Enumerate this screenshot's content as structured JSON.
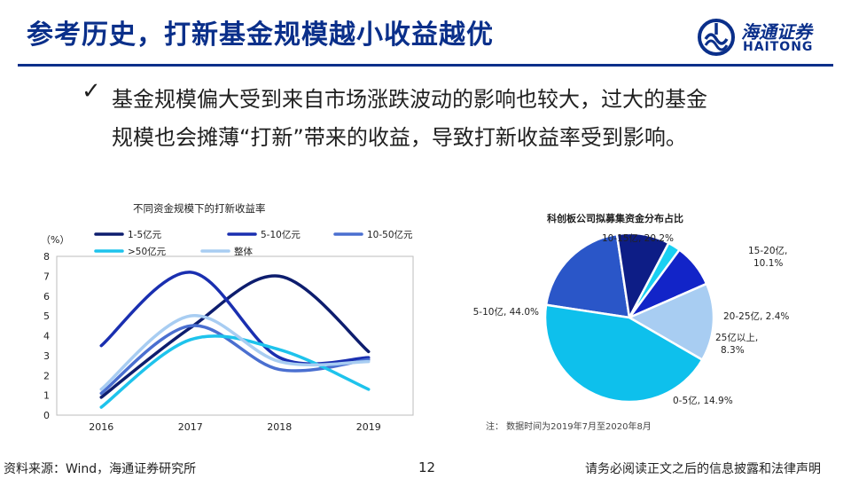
{
  "header": {
    "title": "参考历史，打新基金规模越小收益越优"
  },
  "logo": {
    "name_cn": "海通证券",
    "name_en": "HAITONG"
  },
  "bullet": {
    "icon": "check-icon",
    "line1": "基金规模偏大受到来自市场涨跌波动的影响也较大，过大的基金",
    "line2": "规模也会摊薄“打新”带来的收益，导致打新收益率受到影响。"
  },
  "colors": {
    "brand": "#0a2f8a"
  },
  "chart_data": [
    {
      "type": "line",
      "title": "不同资金规模下的打新收益率",
      "ylabel": "（%）",
      "x": [
        "2016",
        "2017",
        "2018",
        "2019"
      ],
      "ylim": [
        0,
        8
      ],
      "yticks": [
        "0",
        "1",
        "2",
        "3",
        "4",
        "5",
        "6",
        "7",
        "8"
      ],
      "series": [
        {
          "name": "1-5亿元",
          "color": "#0d1d6e",
          "values": [
            0.9,
            4.4,
            7.0,
            3.2
          ]
        },
        {
          "name": "5-10亿元",
          "color": "#1a2fb0",
          "values": [
            3.5,
            7.2,
            2.9,
            2.9
          ]
        },
        {
          "name": "10-50亿元",
          "color": "#4a6fd0",
          "values": [
            1.1,
            4.5,
            2.3,
            2.8
          ]
        },
        {
          "name": ">50亿元",
          "color": "#1ec3ec",
          "values": [
            0.4,
            3.8,
            3.3,
            1.3
          ]
        },
        {
          "name": "整体",
          "color": "#a8cdf2",
          "values": [
            1.3,
            5.0,
            2.7,
            2.7
          ]
        }
      ]
    },
    {
      "type": "pie",
      "title": "科创板公司拟募集资金分布占比",
      "slices": [
        {
          "label": "10-15亿, 20.2%",
          "value": 20.2,
          "color": "#2a56c8"
        },
        {
          "label": "15-20亿, 10.1%",
          "value": 10.1,
          "color": "#0d1d86"
        },
        {
          "label": "20-25亿, 2.4%",
          "value": 2.4,
          "color": "#1ad0f2"
        },
        {
          "label": "25亿以上, 8.3%",
          "value": 8.3,
          "color": "#1224c8"
        },
        {
          "label": "0-5亿, 14.9%",
          "value": 14.9,
          "color": "#a8cdf2"
        },
        {
          "label": "5-10亿, 44.0%",
          "value": 44.0,
          "color": "#0ec0ec"
        }
      ],
      "note": "注：  数据时间为2019年7月至2020年8月"
    }
  ],
  "footer": {
    "source": "资料来源：Wind，海通证券研究所",
    "page": "12",
    "disclaimer": "请务必阅读正文之后的信息披露和法律声明"
  }
}
